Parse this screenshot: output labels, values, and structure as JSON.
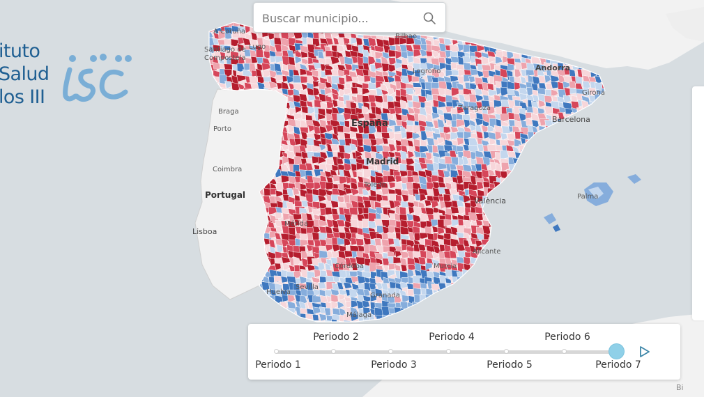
{
  "search": {
    "placeholder": "Buscar municipio..."
  },
  "logo": {
    "line1": "ituto",
    "line2": "Salud",
    "line3": "los III"
  },
  "map": {
    "country_label": "España",
    "labels": {
      "a_coruna": "A Coruña",
      "santiago_1": "Santiago de",
      "santiago_2": "Compostela",
      "lugo": "Lugo",
      "bilbao": "Bilbao",
      "andorra": "Andorra",
      "girona": "Girona",
      "logrono": "Logroño",
      "zaragoza": "Zaragoza",
      "barcelona": "Barcelona",
      "braga": "Braga",
      "porto": "Porto",
      "madrid": "Madrid",
      "toledo": "Toledo",
      "coimbra": "Coimbra",
      "portugal": "Portugal",
      "valencia": "València",
      "palma": "Palma",
      "lisboa": "Lisboa",
      "merida": "Mérida",
      "alicante": "Alicante",
      "cordoba": "Córdoba",
      "murcia": "Murcia",
      "sevilla": "Sevilla",
      "huelva": "Huelva",
      "granada": "Granada",
      "malaga": "Málaga"
    },
    "colors": {
      "sea": "#d7dde1",
      "land": "#f2f2f2",
      "dark_red": "#b51d2e",
      "red": "#d6465a",
      "light_red": "#eea3ad",
      "pale_red": "#f7d6da",
      "blue": "#3f78bf",
      "light_blue": "#86addc",
      "pale_blue": "#c4d7ee"
    }
  },
  "timeline": {
    "periods": [
      "Periodo 1",
      "Periodo 2",
      "Periodo 3",
      "Periodo 4",
      "Periodo 5",
      "Periodo 6",
      "Periodo 7"
    ],
    "selected_index": 6,
    "handle_color": "#8fd0e8"
  },
  "corner_label": "Bi"
}
